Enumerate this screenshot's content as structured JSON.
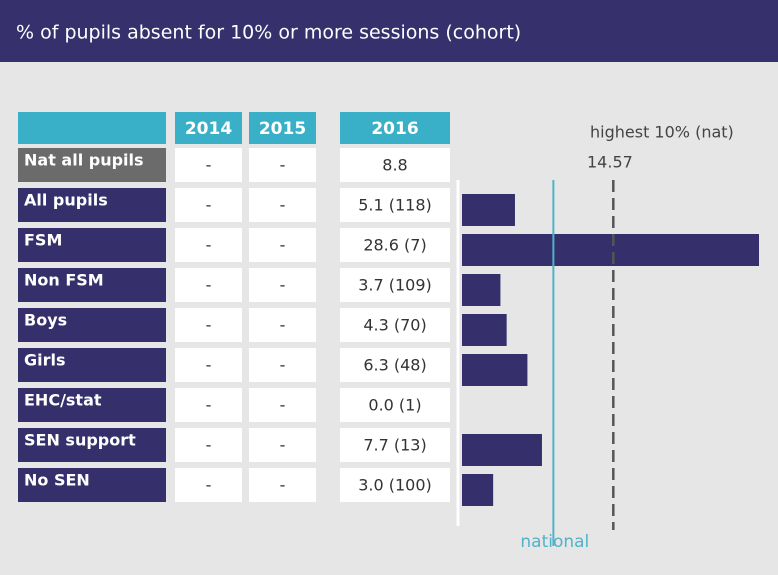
{
  "title": "% of pupils absent for 10% or more sessions (cohort)",
  "chart_data": {
    "type": "bar",
    "columns": [
      "2014",
      "2015",
      "2016"
    ],
    "national_row": {
      "label": "Nat all pupils",
      "cells": [
        "-",
        "-"
      ]
    },
    "categories": [
      "All pupils",
      "FSM",
      "Non FSM",
      "Boys",
      "Girls",
      "EHC/stat",
      "SEN support",
      "No SEN"
    ],
    "earlier": [
      [
        "-",
        "-"
      ],
      [
        "-",
        "-"
      ],
      [
        "-",
        "-"
      ],
      [
        "-",
        "-"
      ],
      [
        "-",
        "-"
      ],
      [
        "-",
        "-"
      ],
      [
        "-",
        "-"
      ],
      [
        "-",
        "-"
      ]
    ],
    "values": [
      5.1,
      28.6,
      3.7,
      4.3,
      6.3,
      0.0,
      7.7,
      3.0
    ],
    "value_labels": [
      "5.1 (118)",
      "28.6 (7)",
      "3.7 (109)",
      "4.3 (70)",
      "6.3 (48)",
      "0.0 (1)",
      "7.7 (13)",
      "3.0 (100)"
    ],
    "reference_lines": [
      {
        "label": "national",
        "value": 8.8,
        "color": "#4fb3c9"
      },
      {
        "label": "highest 10% (nat)",
        "value": 14.57,
        "color": "#555555"
      }
    ],
    "xlim": [
      0,
      28.6
    ],
    "color": "#35306b"
  }
}
